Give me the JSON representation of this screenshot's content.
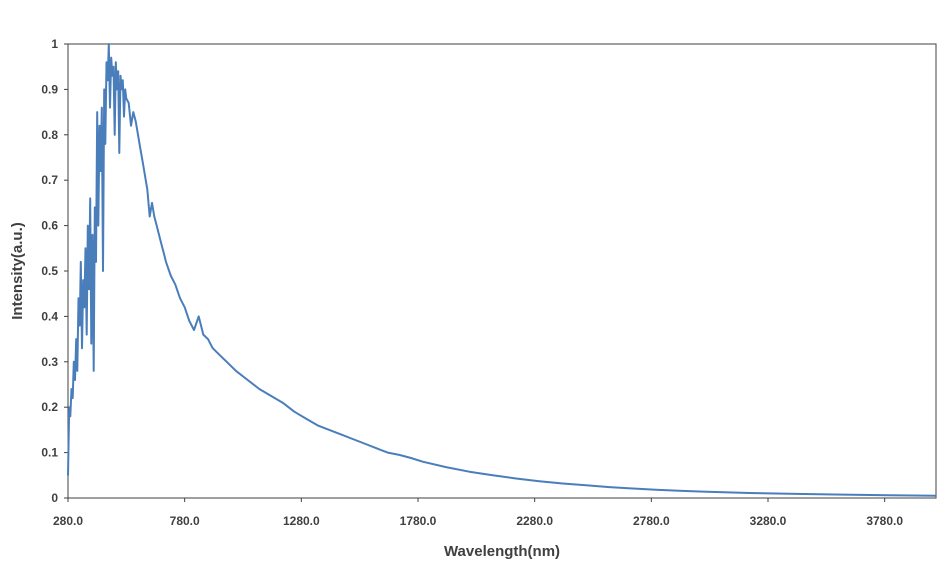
{
  "chart_data": {
    "type": "line",
    "title": "",
    "xlabel": "Wavelength(nm)",
    "ylabel": "Intensity(a.u.)",
    "xlim": [
      280,
      4000
    ],
    "ylim": [
      0,
      1
    ],
    "grid": false,
    "legend": "none",
    "line_color": "#4a7ebb",
    "x_ticks": [
      280,
      780,
      1280,
      1780,
      2280,
      2780,
      3280,
      3780
    ],
    "x_tick_labels": [
      "280.0",
      "780.0",
      "1280.0",
      "1780.0",
      "2280.0",
      "2780.0",
      "3280.0",
      "3780.0"
    ],
    "y_ticks": [
      0,
      0.1,
      0.2,
      0.3,
      0.4,
      0.5,
      0.6,
      0.7,
      0.8,
      0.9,
      1
    ],
    "y_tick_labels": [
      "0",
      "0.1",
      "0.2",
      "0.3",
      "0.4",
      "0.5",
      "0.6",
      "0.7",
      "0.8",
      "0.9",
      "1"
    ],
    "series": [
      {
        "x": [
          280,
          285,
          290,
          295,
          300,
          305,
          310,
          315,
          320,
          325,
          330,
          335,
          340,
          345,
          350,
          355,
          360,
          365,
          370,
          375,
          380,
          385,
          390,
          395,
          400,
          405,
          410,
          415,
          420,
          425,
          430,
          435,
          440,
          445,
          450,
          455,
          460,
          465,
          470,
          475,
          480,
          485,
          490,
          495,
          500,
          505,
          510,
          515,
          520,
          525,
          530,
          540,
          550,
          560,
          570,
          580,
          590,
          600,
          610,
          620,
          630,
          640,
          650,
          660,
          670,
          680,
          690,
          700,
          720,
          740,
          760,
          780,
          800,
          820,
          840,
          860,
          880,
          900,
          920,
          940,
          960,
          980,
          1000,
          1050,
          1100,
          1150,
          1200,
          1250,
          1300,
          1350,
          1400,
          1450,
          1500,
          1550,
          1600,
          1650,
          1700,
          1750,
          1800,
          1900,
          2000,
          2100,
          2200,
          2300,
          2400,
          2500,
          2600,
          2700,
          2800,
          2900,
          3000,
          3200,
          3400,
          3600,
          3800,
          4000
        ],
        "y": [
          0.05,
          0.2,
          0.18,
          0.24,
          0.22,
          0.3,
          0.26,
          0.35,
          0.28,
          0.44,
          0.38,
          0.52,
          0.33,
          0.48,
          0.42,
          0.55,
          0.36,
          0.6,
          0.46,
          0.66,
          0.34,
          0.58,
          0.28,
          0.64,
          0.52,
          0.85,
          0.6,
          0.82,
          0.72,
          0.86,
          0.5,
          0.9,
          0.78,
          0.96,
          0.92,
          1.0,
          0.86,
          0.97,
          0.93,
          0.95,
          0.8,
          0.96,
          0.9,
          0.94,
          0.76,
          0.93,
          0.9,
          0.92,
          0.84,
          0.9,
          0.88,
          0.87,
          0.82,
          0.85,
          0.83,
          0.8,
          0.77,
          0.74,
          0.71,
          0.68,
          0.62,
          0.65,
          0.62,
          0.6,
          0.58,
          0.56,
          0.54,
          0.52,
          0.49,
          0.47,
          0.44,
          0.42,
          0.39,
          0.37,
          0.4,
          0.36,
          0.35,
          0.33,
          0.32,
          0.31,
          0.3,
          0.29,
          0.28,
          0.26,
          0.24,
          0.225,
          0.21,
          0.19,
          0.175,
          0.16,
          0.15,
          0.14,
          0.13,
          0.12,
          0.11,
          0.1,
          0.095,
          0.088,
          0.08,
          0.068,
          0.058,
          0.05,
          0.043,
          0.037,
          0.032,
          0.028,
          0.024,
          0.021,
          0.018,
          0.016,
          0.014,
          0.011,
          0.009,
          0.0075,
          0.006,
          0.005
        ]
      }
    ]
  }
}
